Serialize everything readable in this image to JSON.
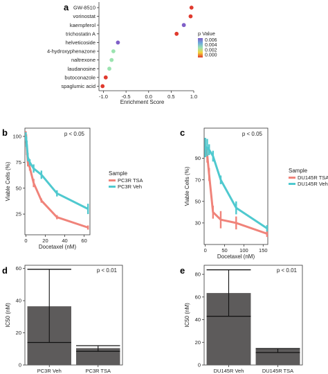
{
  "panel_letters": [
    "a",
    "b",
    "c",
    "d",
    "e"
  ],
  "colors": {
    "tsa": "#f0837a",
    "veh": "#4fc9cf",
    "bar": "#5d5b5b",
    "axis": "#333333",
    "grid_bg": "#ffffff"
  },
  "chart_data": [
    {
      "panel": "a",
      "type": "scatter",
      "xlabel": "Enrichment Score",
      "ylabel": "",
      "xlim": [
        -1.1,
        1.0
      ],
      "xticks": [
        -1.0,
        -0.5,
        0.0,
        0.5,
        1.0
      ],
      "xtick_labels": [
        "-1.0",
        "-0.5",
        "0.0",
        "0.5",
        "1.0"
      ],
      "categories": [
        "GW-8510",
        "vorinostat",
        "kaempferol",
        "trichostatin A",
        "helveticoside",
        "4-hydroxyphenazone",
        "naltrexone",
        "laudanosine",
        "butoconazole",
        "spaglumic acid"
      ],
      "x": [
        0.95,
        0.93,
        0.78,
        0.62,
        -0.68,
        -0.78,
        -0.82,
        -0.87,
        -0.95,
        -1.02
      ],
      "p_values": [
        0.0003,
        0.0004,
        0.0065,
        0.0005,
        0.0068,
        0.003,
        0.003,
        0.003,
        0.0002,
        0.0005
      ],
      "legend": {
        "title": "p Value",
        "ticks": [
          "0.006",
          "0.004",
          "0.002",
          "0.000"
        ],
        "colors": [
          "#7f5fc8",
          "#6ea9dc",
          "#9be3b0",
          "#f4d23a",
          "#e03a2e"
        ]
      }
    },
    {
      "panel": "b",
      "type": "line",
      "xlabel": "Docetaxel (nM)",
      "ylabel": "Viable Cells (%)",
      "xlim": [
        -1,
        66
      ],
      "ylim": [
        5,
        108
      ],
      "xticks": [
        0,
        20,
        40,
        60
      ],
      "yticks": [
        25,
        50,
        75,
        100
      ],
      "annotation": "p < 0.05",
      "legend_title": "Sample",
      "series": [
        {
          "name": "PC3R TSA",
          "color_key": "tsa",
          "x": [
            0,
            0.5,
            1,
            2,
            4,
            8,
            16,
            32,
            64
          ],
          "y": [
            100,
            96,
            88,
            75,
            70,
            55,
            38,
            22,
            12
          ],
          "err": [
            5,
            6,
            6,
            4,
            3,
            4,
            2,
            2,
            2
          ]
        },
        {
          "name": "PC3R Veh",
          "color_key": "veh",
          "x": [
            0,
            0.5,
            1,
            2,
            4,
            8,
            16,
            32,
            64
          ],
          "y": [
            100,
            95,
            92,
            80,
            75,
            69,
            63,
            45,
            30
          ],
          "err": [
            4,
            5,
            4,
            4,
            3,
            4,
            4,
            3,
            5
          ]
        }
      ]
    },
    {
      "panel": "c",
      "type": "line",
      "xlabel": "Docetaxel (nM)",
      "ylabel": "Viable Cells (%)",
      "xlim": [
        -3,
        162
      ],
      "ylim": [
        10,
        118
      ],
      "xticks": [
        0,
        50,
        100,
        150
      ],
      "yticks": [
        30,
        50,
        70,
        90
      ],
      "annotation": "p < 0.05",
      "legend_title": "Sample",
      "series": [
        {
          "name": "DU145R TSA",
          "color_key": "tsa",
          "x": [
            0,
            5,
            10,
            20,
            40,
            80,
            160
          ],
          "y": [
            100,
            93,
            75,
            40,
            33,
            30,
            20
          ],
          "err": [
            8,
            7,
            6,
            6,
            8,
            6,
            3
          ]
        },
        {
          "name": "DU145R Veh",
          "color_key": "veh",
          "x": [
            0,
            5,
            10,
            20,
            40,
            80,
            160
          ],
          "y": [
            100,
            100,
            98,
            92,
            70,
            44,
            25
          ],
          "err": [
            9,
            8,
            5,
            5,
            4,
            6,
            3
          ]
        }
      ]
    },
    {
      "panel": "d",
      "type": "bar",
      "xlabel": "",
      "ylabel": "IC50 (nM)",
      "ylim": [
        0,
        62
      ],
      "yticks": [
        0,
        20,
        40,
        60
      ],
      "annotation": "p < 0.01",
      "categories": [
        "PC3R Veh",
        "PC3R TSA"
      ],
      "values": [
        36.5,
        10.5
      ],
      "lines": [
        [
          59.5,
          14.0
        ],
        [
          12.0,
          8.5
        ]
      ],
      "err_low": [
        14.0,
        8.5
      ],
      "err_high": [
        59.5,
        12.0
      ]
    },
    {
      "panel": "e",
      "type": "bar",
      "xlabel": "",
      "ylabel": "IC50 (nM)",
      "ylim": [
        0,
        88
      ],
      "yticks": [
        0,
        20,
        40,
        60,
        80
      ],
      "annotation": "p < 0.01",
      "categories": [
        "DU145R Veh",
        "DU145R TSA"
      ],
      "values": [
        63.5,
        14.5
      ],
      "lines": [
        [
          84.0,
          43.0
        ],
        [
          14.5,
          11.0
        ]
      ],
      "err_low": [
        43.0,
        11.0
      ],
      "err_high": [
        84.0,
        14.5
      ]
    }
  ]
}
